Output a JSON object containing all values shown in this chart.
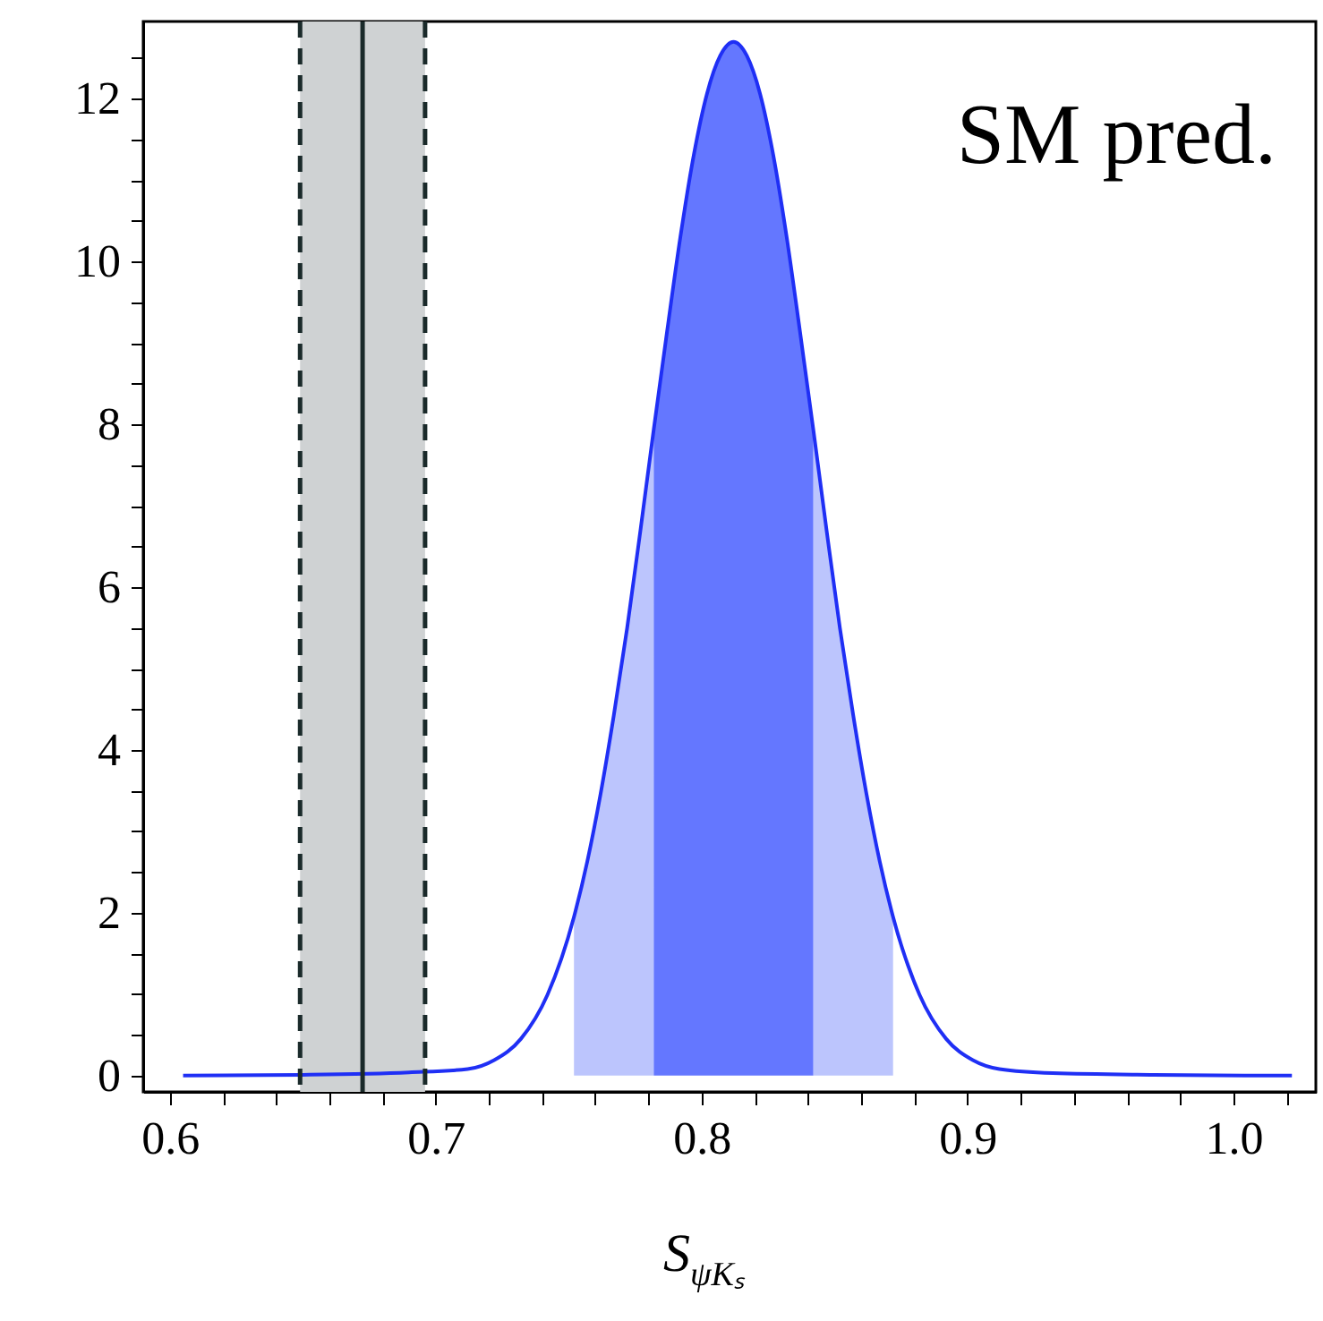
{
  "chart_data": {
    "type": "line",
    "xlabel": "S$_{ψKₛ}$",
    "annotations": [
      "SM pred."
    ],
    "xlim": [
      0.59,
      1.031
    ],
    "ylim": [
      -0.2,
      12.95
    ],
    "xticks": [
      0.6,
      {
        "value": 0.62,
        "label": null
      },
      {
        "value": 0.64,
        "label": null
      },
      {
        "value": 0.66,
        "label": null
      },
      {
        "value": 0.68,
        "label": null
      },
      0.7,
      {
        "value": 0.72,
        "label": null
      },
      {
        "value": 0.74,
        "label": null
      },
      {
        "value": 0.76,
        "label": null
      },
      {
        "value": 0.78,
        "label": null
      },
      0.8,
      {
        "value": 0.82,
        "label": null
      },
      {
        "value": 0.84,
        "label": null
      },
      {
        "value": 0.86,
        "label": null
      },
      {
        "value": 0.88,
        "label": null
      },
      0.9,
      {
        "value": 0.92,
        "label": null
      },
      {
        "value": 0.94,
        "label": null
      },
      {
        "value": 0.96,
        "label": null
      },
      {
        "value": 0.98,
        "label": null
      },
      {
        "value": 1.0,
        "label": "1.0"
      },
      {
        "value": 1.02,
        "label": null
      }
    ],
    "yticks": [
      0,
      {
        "value": 0.5,
        "label": null
      },
      {
        "value": 1,
        "label": null
      },
      {
        "value": 1.5,
        "label": null
      },
      2,
      {
        "value": 2.5,
        "label": null
      },
      {
        "value": 3,
        "label": null
      },
      {
        "value": 3.5,
        "label": null
      },
      4,
      {
        "value": 4.5,
        "label": null
      },
      {
        "value": 5,
        "label": null
      },
      {
        "value": 5.5,
        "label": null
      },
      6,
      {
        "value": 6.5,
        "label": null
      },
      {
        "value": 7,
        "label": null
      },
      {
        "value": 7.5,
        "label": null
      },
      8,
      {
        "value": 8.5,
        "label": null
      },
      {
        "value": 9,
        "label": null
      },
      {
        "value": 9.5,
        "label": null
      },
      10,
      {
        "value": 10.5,
        "label": null
      },
      {
        "value": 11,
        "label": null
      },
      {
        "value": 11.5,
        "label": null
      },
      12,
      {
        "value": 12.5,
        "label": null
      }
    ],
    "grid": false,
    "bands": [
      {
        "axis": "x",
        "from": 0.649,
        "to": 0.696,
        "color": "#cfd2d3"
      }
    ],
    "ref_lines": [
      {
        "axis": "x",
        "value": 0.649,
        "color": "#1a2a2a",
        "line_style": "dashed"
      },
      {
        "axis": "x",
        "value": 0.696,
        "color": "#1a2a2a",
        "line_style": "dashed"
      },
      {
        "axis": "x",
        "value": 0.6725,
        "color": "#1a2a2a",
        "line_style": "solid"
      }
    ],
    "series": [
      {
        "type": "area",
        "color": "#bcc5fd",
        "x": [
          0.752,
          0.757,
          0.762,
          0.767,
          0.772,
          0.777,
          0.782
        ],
        "values": [
          1.95,
          2.63,
          3.46,
          4.43,
          5.5,
          6.7,
          7.94
        ]
      },
      {
        "type": "area",
        "color": "#bcc5fd",
        "x": [
          0.842,
          0.847,
          0.852,
          0.857,
          0.862,
          0.867,
          0.872
        ],
        "values": [
          7.94,
          6.7,
          5.5,
          4.43,
          3.46,
          2.63,
          1.95
        ]
      },
      {
        "type": "area",
        "color": "#6477ff",
        "x": [
          0.782,
          0.787,
          0.792,
          0.797,
          0.802,
          0.807,
          0.812,
          0.817,
          0.822,
          0.827,
          0.832,
          0.837,
          0.842
        ],
        "values": [
          7.94,
          9.14,
          10.3,
          11.3,
          12.06,
          12.53,
          12.7,
          12.53,
          12.06,
          11.3,
          10.3,
          9.14,
          7.94
        ]
      },
      {
        "color": "#1f2ff5",
        "x": [
          0.605,
          0.65,
          0.69,
          0.712,
          0.722,
          0.732,
          0.742,
          0.752,
          0.757,
          0.762,
          0.767,
          0.772,
          0.777,
          0.782,
          0.787,
          0.792,
          0.797,
          0.802,
          0.807,
          0.812,
          0.817,
          0.822,
          0.827,
          0.832,
          0.837,
          0.842,
          0.847,
          0.852,
          0.857,
          0.862,
          0.867,
          0.872,
          0.882,
          0.892,
          0.902,
          0.912,
          0.932,
          0.97,
          1.022
        ],
        "values": [
          0,
          0.01,
          0.04,
          0.08,
          0.19,
          0.45,
          0.99,
          1.95,
          2.63,
          3.46,
          4.43,
          5.5,
          6.7,
          7.94,
          9.14,
          10.3,
          11.3,
          12.06,
          12.53,
          12.7,
          12.53,
          12.06,
          11.3,
          10.3,
          9.14,
          7.94,
          6.7,
          5.5,
          4.43,
          3.46,
          2.63,
          1.95,
          0.99,
          0.45,
          0.19,
          0.08,
          0.03,
          0.01,
          0
        ]
      }
    ]
  }
}
